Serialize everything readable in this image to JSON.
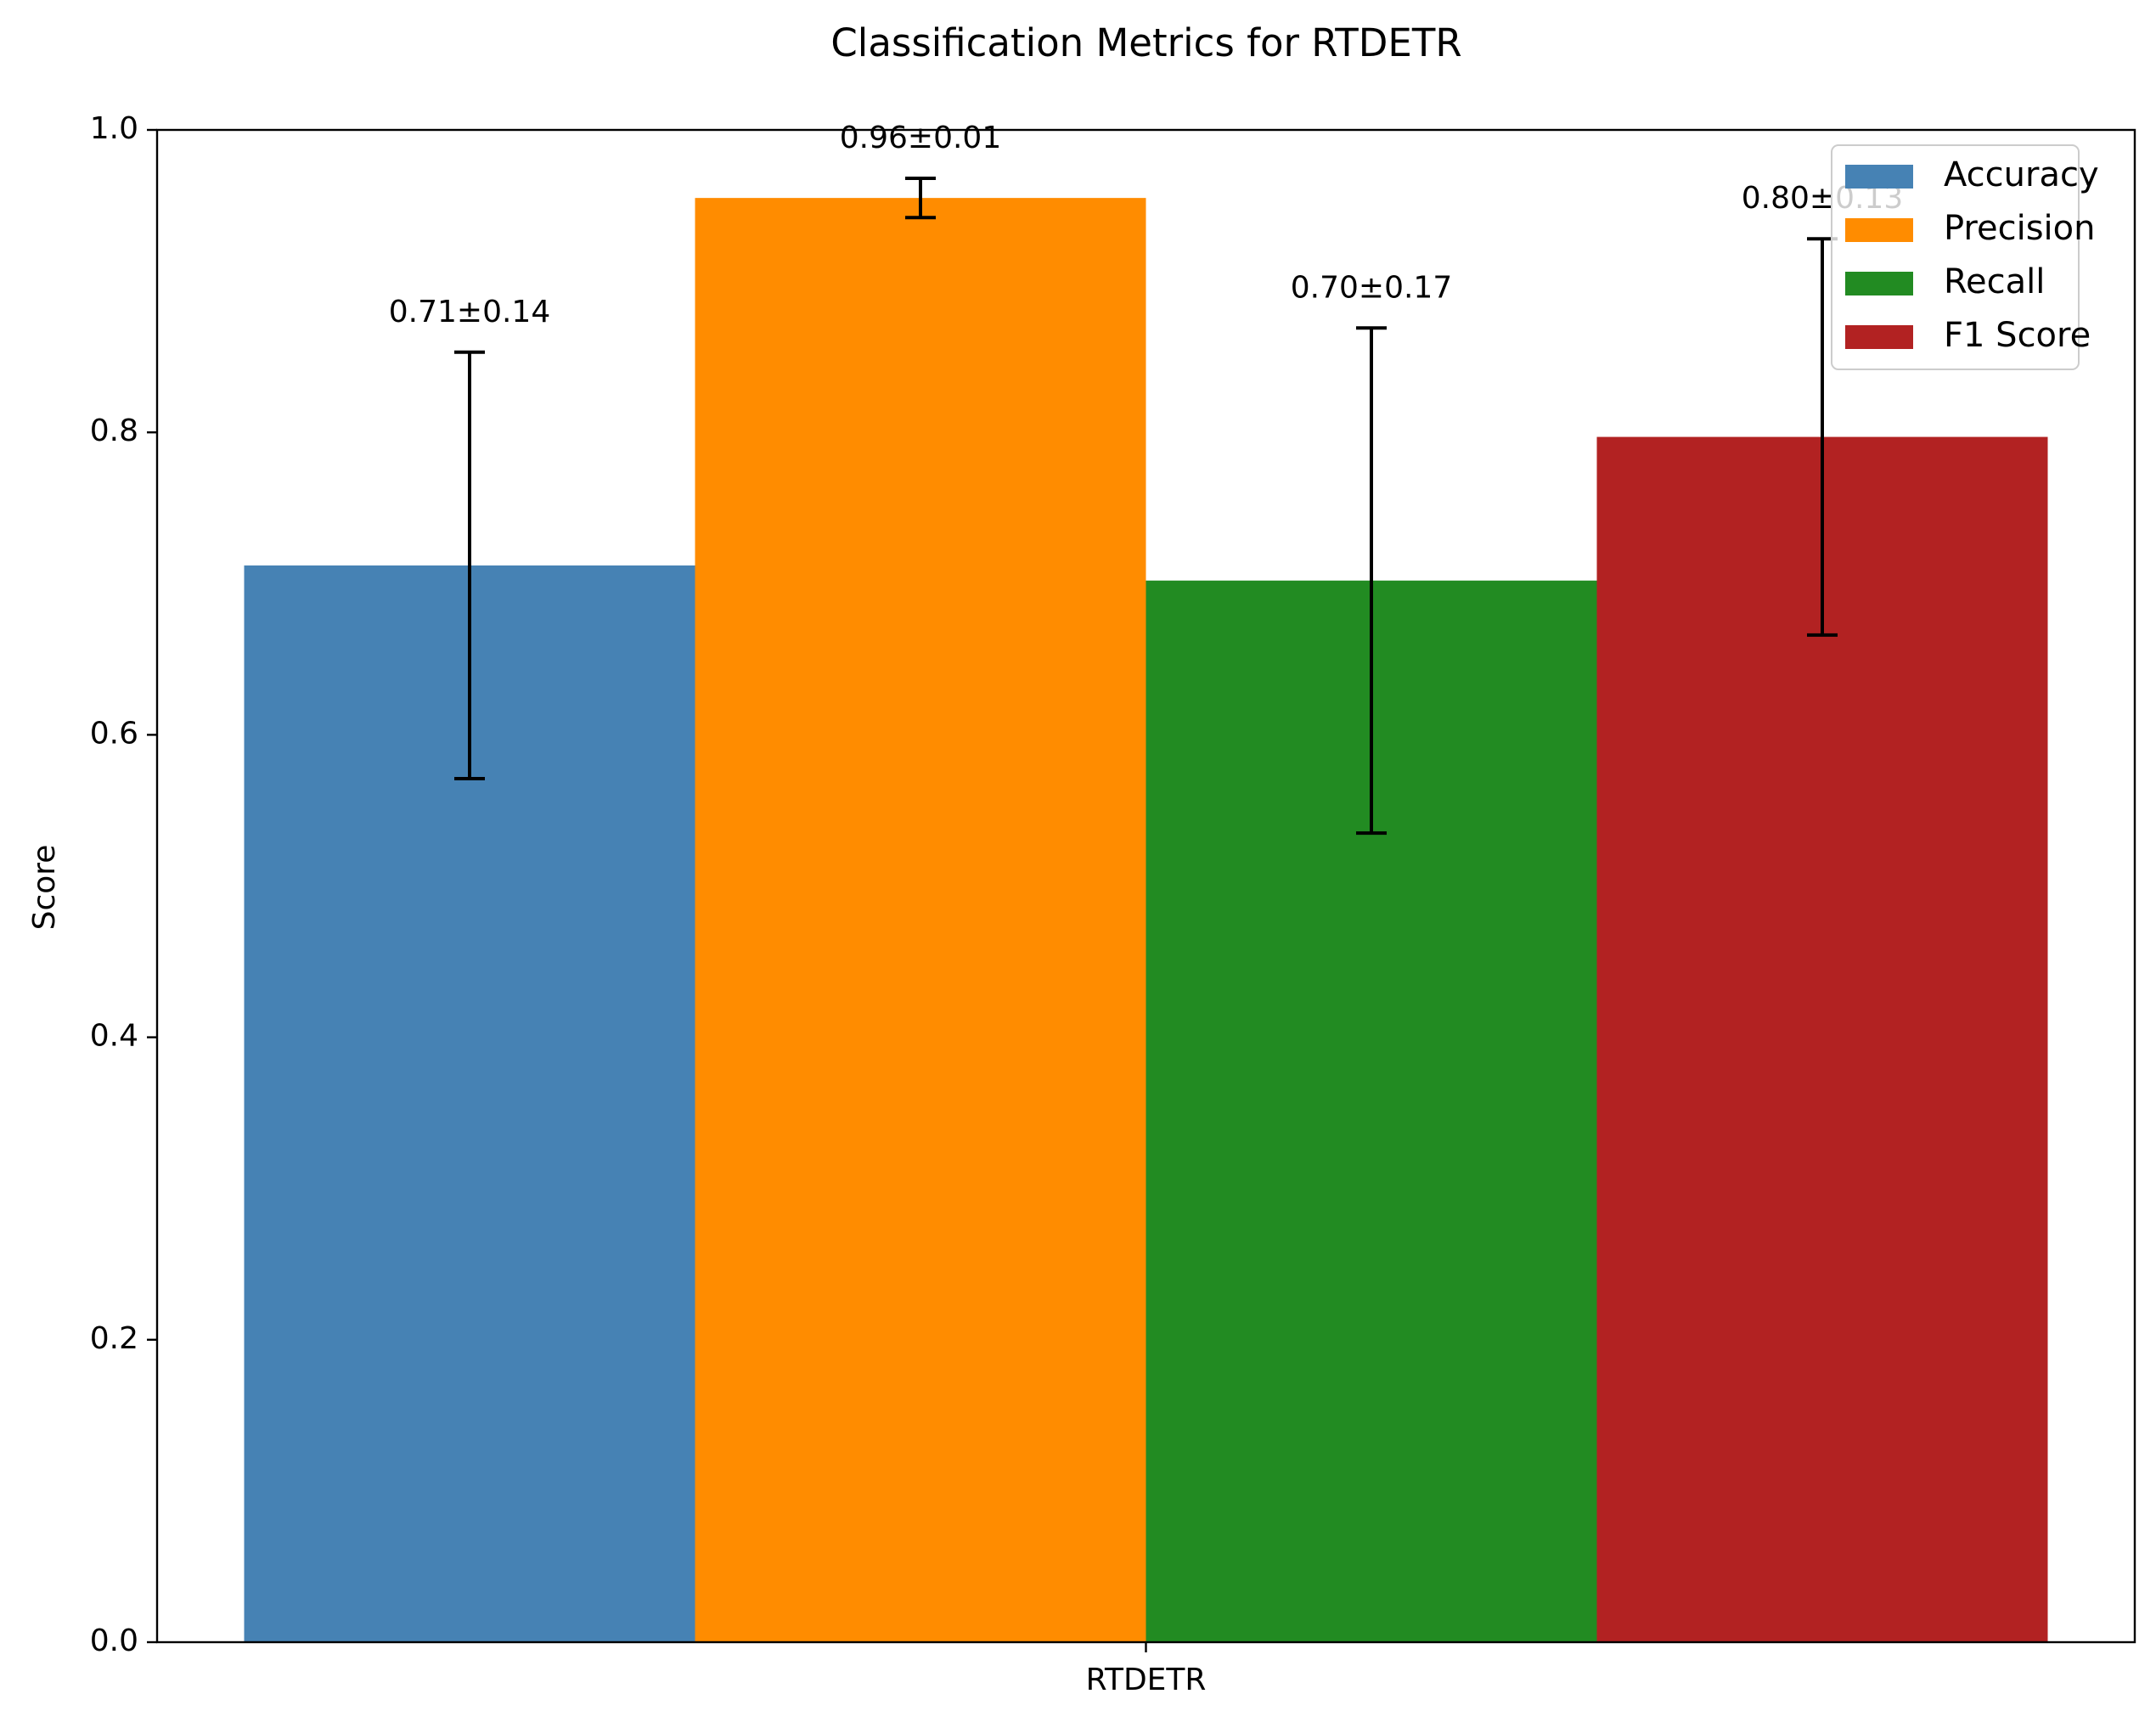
{
  "chart_data": {
    "type": "bar",
    "title": "Classification Metrics for RTDETR",
    "xlabel": "",
    "ylabel": "Score",
    "categories": [
      "RTDETR"
    ],
    "ylim": [
      0,
      1.0
    ],
    "yticks": [
      "0.0",
      "0.2",
      "0.4",
      "0.6",
      "0.8",
      "1.0"
    ],
    "grid": false,
    "legend_position": "top-right",
    "series": [
      {
        "name": "Accuracy",
        "values": [
          0.712
        ],
        "errors": [
          0.141
        ],
        "label": "0.71±0.14",
        "color": "#4682b4"
      },
      {
        "name": "Precision",
        "values": [
          0.955
        ],
        "errors": [
          0.013
        ],
        "label": "0.96±0.01",
        "color": "#ff8c00"
      },
      {
        "name": "Recall",
        "values": [
          0.702
        ],
        "errors": [
          0.167
        ],
        "label": "0.70±0.17",
        "color": "#228b22"
      },
      {
        "name": "F1 Score",
        "values": [
          0.797
        ],
        "errors": [
          0.131
        ],
        "label": "0.80±0.13",
        "color": "#b22222"
      }
    ]
  }
}
